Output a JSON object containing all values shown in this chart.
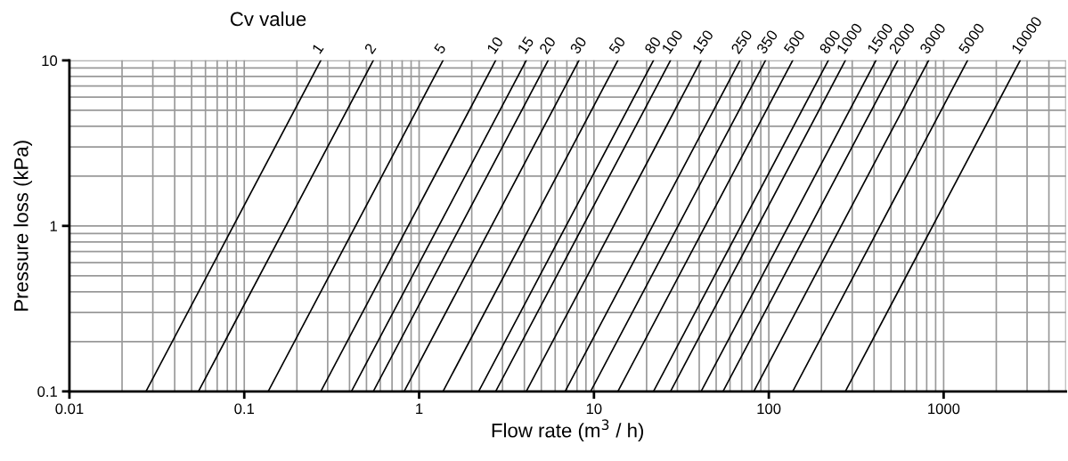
{
  "chart_data": {
    "type": "line",
    "xlabel": "Flow rate (m$^{3}$ / h)",
    "ylabel": "Pressure loss (kPa)",
    "legend_title": "Cv value",
    "log": "xy",
    "grid": true,
    "legend": false,
    "line_style": "solid",
    "marker": "none",
    "xlim": [
      0.01,
      5000
    ],
    "xticks": [
      0.01,
      0.1,
      1,
      10,
      100,
      1000
    ],
    "ylim": [
      0.1,
      10
    ],
    "yticks": [
      0.1,
      1,
      10
    ],
    "series": [
      {
        "name": "1",
        "color": "#000000",
        "x": [
          0.0274,
          0.274
        ],
        "values": [
          0.1,
          10
        ]
      },
      {
        "name": "2",
        "color": "#000000",
        "x": [
          0.0547,
          0.547
        ],
        "values": [
          0.1,
          10
        ]
      },
      {
        "name": "5",
        "color": "#000000",
        "x": [
          0.137,
          1.37
        ],
        "values": [
          0.1,
          10
        ]
      },
      {
        "name": "10",
        "color": "#000000",
        "x": [
          0.274,
          2.74
        ],
        "values": [
          0.1,
          10
        ]
      },
      {
        "name": "15",
        "color": "#000000",
        "x": [
          0.41,
          4.1
        ],
        "values": [
          0.1,
          10
        ]
      },
      {
        "name": "20",
        "color": "#000000",
        "x": [
          0.547,
          5.47
        ],
        "values": [
          0.1,
          10
        ]
      },
      {
        "name": "30",
        "color": "#000000",
        "x": [
          0.821,
          8.21
        ],
        "values": [
          0.1,
          10
        ]
      },
      {
        "name": "50",
        "color": "#000000",
        "x": [
          1.37,
          13.7
        ],
        "values": [
          0.1,
          10
        ]
      },
      {
        "name": "80",
        "color": "#000000",
        "x": [
          2.19,
          21.9
        ],
        "values": [
          0.1,
          10
        ]
      },
      {
        "name": "100",
        "color": "#000000",
        "x": [
          2.74,
          27.4
        ],
        "values": [
          0.1,
          10
        ]
      },
      {
        "name": "150",
        "color": "#000000",
        "x": [
          4.1,
          41
        ],
        "values": [
          0.1,
          10
        ]
      },
      {
        "name": "250",
        "color": "#000000",
        "x": [
          6.84,
          68.4
        ],
        "values": [
          0.1,
          10
        ]
      },
      {
        "name": "350",
        "color": "#000000",
        "x": [
          9.57,
          95.7
        ],
        "values": [
          0.1,
          10
        ]
      },
      {
        "name": "500",
        "color": "#000000",
        "x": [
          13.7,
          137
        ],
        "values": [
          0.1,
          10
        ]
      },
      {
        "name": "800",
        "color": "#000000",
        "x": [
          21.9,
          219
        ],
        "values": [
          0.1,
          10
        ]
      },
      {
        "name": "1000",
        "color": "#000000",
        "x": [
          27.4,
          274
        ],
        "values": [
          0.1,
          10
        ]
      },
      {
        "name": "1500",
        "color": "#000000",
        "x": [
          41,
          410
        ],
        "values": [
          0.1,
          10
        ]
      },
      {
        "name": "2000",
        "color": "#000000",
        "x": [
          54.7,
          547
        ],
        "values": [
          0.1,
          10
        ]
      },
      {
        "name": "3000",
        "color": "#000000",
        "x": [
          82.1,
          821
        ],
        "values": [
          0.1,
          10
        ]
      },
      {
        "name": "5000",
        "color": "#000000",
        "x": [
          137,
          1370
        ],
        "values": [
          0.1,
          10
        ]
      },
      {
        "name": "10000",
        "color": "#000000",
        "x": [
          274,
          2740
        ],
        "values": [
          0.1,
          10
        ]
      }
    ]
  }
}
